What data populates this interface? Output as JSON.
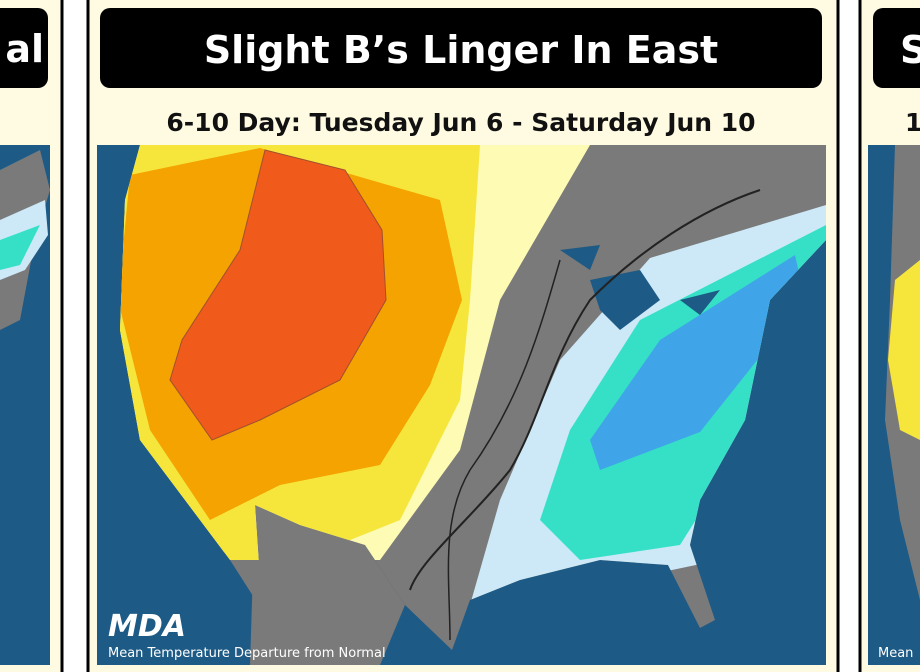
{
  "panels": {
    "left": {
      "title": "al"
    },
    "center": {
      "title": "Slight B’s Linger In East",
      "subtitle": "6-10 Day: Tuesday Jun 6 - Saturday Jun 10",
      "logo": "MDA",
      "caption": "Mean Temperature Departure from Normal"
    },
    "right": {
      "title": "S",
      "subtitle": "1",
      "caption": "Mean"
    }
  }
}
